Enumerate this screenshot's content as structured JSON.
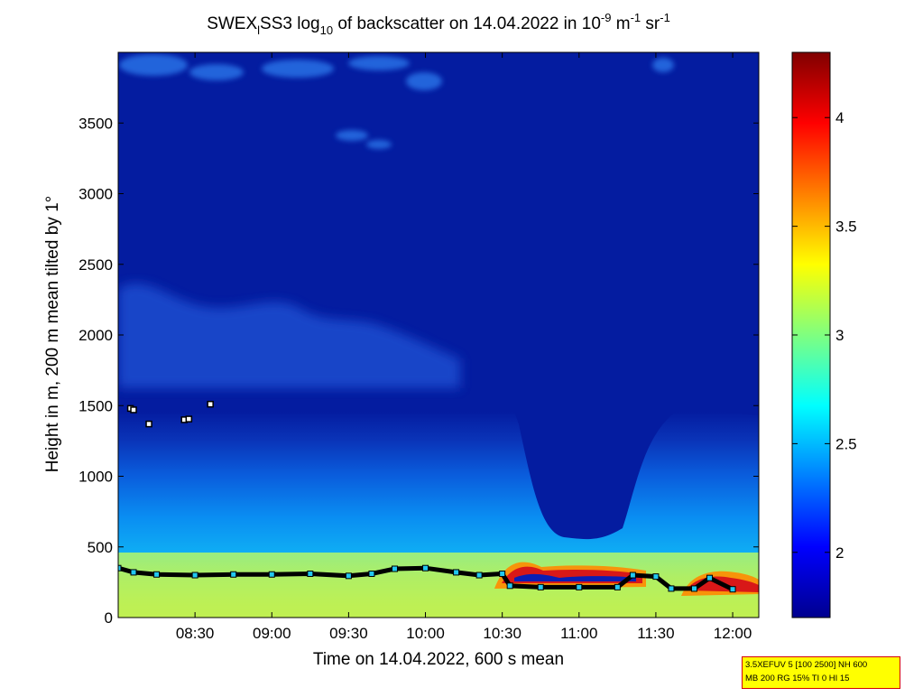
{
  "chart_data": {
    "type": "heatmap",
    "title": {
      "part1": "SWEX",
      "part1_sub": "l",
      "part2": "SS3 log",
      "part2_sub": "10",
      "part3": " of backscatter on 14.04.2022 in 10",
      "sup1": "-9",
      "part4": " m",
      "sup2": "-1",
      "part5": " sr",
      "sup3": "-1"
    },
    "xlabel": "Time on 14.04.2022, 600 s mean",
    "ylabel": "Height in m, 200 m mean tilted by 1°",
    "x_axis": {
      "range_hours": [
        8.0,
        12.17
      ],
      "ticks": [
        {
          "value": 8.5,
          "label": "08:30"
        },
        {
          "value": 9.0,
          "label": "09:00"
        },
        {
          "value": 9.5,
          "label": "09:30"
        },
        {
          "value": 10.0,
          "label": "10:00"
        },
        {
          "value": 10.5,
          "label": "10:30"
        },
        {
          "value": 11.0,
          "label": "11:00"
        },
        {
          "value": 11.5,
          "label": "11:30"
        },
        {
          "value": 12.0,
          "label": "12:00"
        }
      ]
    },
    "y_axis": {
      "range": [
        0,
        4000
      ],
      "ticks": [
        {
          "value": 0,
          "label": "0"
        },
        {
          "value": 500,
          "label": "500"
        },
        {
          "value": 1000,
          "label": "1000"
        },
        {
          "value": 1500,
          "label": "1500"
        },
        {
          "value": 2000,
          "label": "2000"
        },
        {
          "value": 2500,
          "label": "2500"
        },
        {
          "value": 3000,
          "label": "3000"
        },
        {
          "value": 3500,
          "label": "3500"
        }
      ]
    },
    "colorbar": {
      "colormap": "jet",
      "range": [
        1.7,
        4.3
      ],
      "ticks": [
        {
          "value": 2,
          "label": "2"
        },
        {
          "value": 2.5,
          "label": "2.5"
        },
        {
          "value": 3,
          "label": "3"
        },
        {
          "value": 3.5,
          "label": "3.5"
        },
        {
          "value": 4,
          "label": "4"
        }
      ]
    },
    "mixing_layer_height": {
      "t": [
        8.0,
        8.1,
        8.25,
        8.5,
        8.75,
        9.0,
        9.25,
        9.5,
        9.65,
        9.8,
        10.0,
        10.2,
        10.35,
        10.5,
        10.55,
        10.75,
        11.0,
        11.25,
        11.35,
        11.5,
        11.6,
        11.75,
        11.85,
        12.0
      ],
      "h": [
        350,
        320,
        305,
        300,
        305,
        305,
        310,
        295,
        310,
        345,
        350,
        320,
        300,
        310,
        225,
        215,
        215,
        215,
        300,
        290,
        205,
        205,
        280,
        200
      ]
    },
    "cloud_base_points": {
      "t": [
        8.08,
        8.1,
        8.2,
        8.43,
        8.46,
        8.6
      ],
      "h": [
        1480,
        1470,
        1370,
        1400,
        1405,
        1510
      ]
    }
  },
  "info_box": {
    "line1": "3.5XEFUV 5 [100 2500] NH 600",
    "line2": "MB 200 RG 15% TI 0 HI 15"
  }
}
